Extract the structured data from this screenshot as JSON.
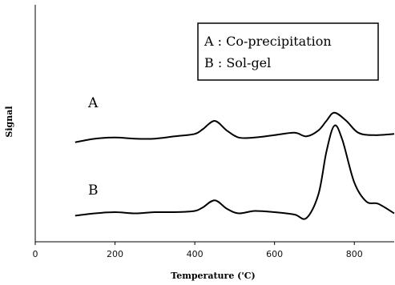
{
  "chart_data": {
    "type": "line",
    "title": "",
    "xlabel": "Temperature ('C)",
    "ylabel": "Signal",
    "xlim": [
      0,
      900
    ],
    "x_ticks": [
      "0",
      "200",
      "400",
      "600",
      "800"
    ],
    "x_tick_values": [
      0,
      200,
      400,
      600,
      800
    ],
    "grid": false,
    "legend_position": "top-right",
    "legend": [
      {
        "key": "A",
        "sep": ":",
        "text": "Co-precipitation"
      },
      {
        "key": "B",
        "sep": ":",
        "text": "Sol-gel"
      }
    ],
    "series": [
      {
        "name": "A",
        "label": "A",
        "x": [
          100,
          150,
          200,
          250,
          300,
          350,
          400,
          420,
          450,
          480,
          510,
          550,
          600,
          650,
          680,
          710,
          730,
          750,
          780,
          810,
          850,
          900
        ],
        "y": [
          0.42,
          0.435,
          0.44,
          0.435,
          0.435,
          0.445,
          0.455,
          0.475,
          0.51,
          0.47,
          0.44,
          0.44,
          0.45,
          0.46,
          0.445,
          0.47,
          0.51,
          0.545,
          0.51,
          0.46,
          0.45,
          0.455
        ]
      },
      {
        "name": "B",
        "label": "B",
        "x": [
          100,
          150,
          200,
          250,
          300,
          350,
          400,
          420,
          450,
          480,
          510,
          550,
          600,
          650,
          680,
          710,
          730,
          750,
          770,
          800,
          830,
          860,
          900
        ],
        "y": [
          0.11,
          0.12,
          0.125,
          0.12,
          0.125,
          0.125,
          0.13,
          0.145,
          0.175,
          0.14,
          0.12,
          0.13,
          0.125,
          0.115,
          0.1,
          0.2,
          0.38,
          0.49,
          0.43,
          0.25,
          0.17,
          0.16,
          0.12
        ]
      }
    ]
  }
}
